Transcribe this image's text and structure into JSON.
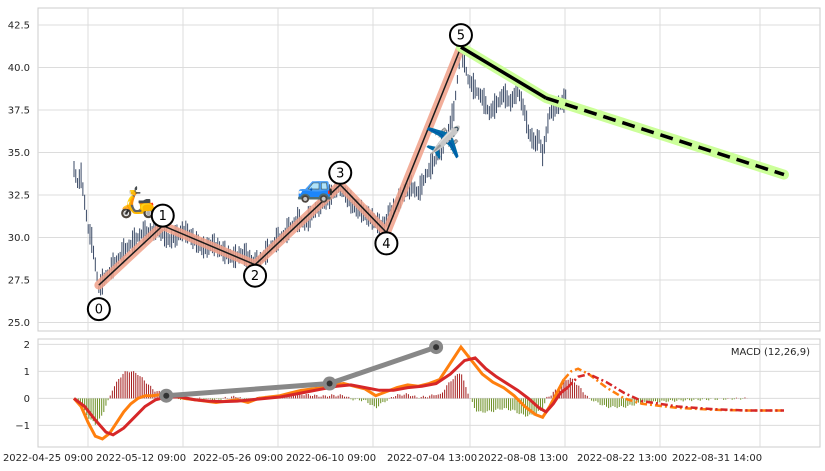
{
  "chart_data": [
    {
      "type": "candlestick",
      "panel": "price",
      "ylim": [
        24.5,
        43.5
      ],
      "yticks": [
        "25.0",
        "27.5",
        "30.0",
        "32.5",
        "35.0",
        "37.5",
        "40.0",
        "42.5"
      ],
      "grid": true,
      "colors": {
        "candles": "#3a4a66",
        "wave_band": "#f0a088",
        "wave_line": "#1a1a1a",
        "projection_band": "#ccff99",
        "projection_line": "#000000"
      },
      "wave_points": [
        {
          "label": "0",
          "x": 7,
          "y": 27.2
        },
        {
          "label": "1",
          "x": 25,
          "y": 30.7
        },
        {
          "label": "2",
          "x": 51,
          "y": 28.4
        },
        {
          "label": "3",
          "x": 75,
          "y": 33.1
        },
        {
          "label": "4",
          "x": 88,
          "y": 30.3
        },
        {
          "label": "5",
          "x": 109,
          "y": 41.2
        }
      ],
      "projection": [
        {
          "x": 109,
          "y": 41.2
        },
        {
          "x": 133,
          "y": 38.2
        },
        {
          "x": 200,
          "y": 33.7
        }
      ],
      "icons": [
        {
          "name": "scooter",
          "glyph": "🛵",
          "x": 18,
          "y": 31.5
        },
        {
          "name": "car",
          "glyph": "🚙",
          "x": 68,
          "y": 32.4
        },
        {
          "name": "airplane",
          "glyph": "✈️",
          "x": 104,
          "y": 35.0
        }
      ],
      "price_segments": [
        [
          0,
          34.0
        ],
        [
          1,
          33.2
        ],
        [
          2,
          33.6
        ],
        [
          4,
          30.5
        ],
        [
          5,
          29.8
        ],
        [
          7,
          27.0
        ],
        [
          9,
          27.7
        ],
        [
          11,
          28.3
        ],
        [
          13,
          28.9
        ],
        [
          15,
          29.4
        ],
        [
          17,
          29.8
        ],
        [
          19,
          30.2
        ],
        [
          21,
          30.3
        ],
        [
          23,
          30.5
        ],
        [
          25,
          30.2
        ],
        [
          27,
          29.8
        ],
        [
          29,
          30.1
        ],
        [
          31,
          30.4
        ],
        [
          33,
          30.0
        ],
        [
          35,
          29.6
        ],
        [
          37,
          29.3
        ],
        [
          39,
          29.6
        ],
        [
          41,
          29.3
        ],
        [
          43,
          29.0
        ],
        [
          45,
          28.8
        ],
        [
          47,
          29.0
        ],
        [
          49,
          28.9
        ],
        [
          51,
          28.4
        ],
        [
          53,
          28.8
        ],
        [
          55,
          29.3
        ],
        [
          57,
          29.8
        ],
        [
          59,
          30.1
        ],
        [
          61,
          30.6
        ],
        [
          63,
          31.0
        ],
        [
          65,
          30.8
        ],
        [
          67,
          31.3
        ],
        [
          69,
          31.9
        ],
        [
          71,
          32.1
        ],
        [
          73,
          32.6
        ],
        [
          75,
          33.1
        ],
        [
          77,
          32.3
        ],
        [
          79,
          31.8
        ],
        [
          81,
          31.5
        ],
        [
          83,
          31.2
        ],
        [
          85,
          30.9
        ],
        [
          87,
          30.6
        ],
        [
          89,
          31.4
        ],
        [
          91,
          32.0
        ],
        [
          93,
          32.6
        ],
        [
          95,
          33.0
        ],
        [
          97,
          32.6
        ],
        [
          99,
          33.6
        ],
        [
          101,
          34.3
        ],
        [
          103,
          35.0
        ],
        [
          105,
          36.0
        ],
        [
          107,
          37.4
        ],
        [
          109,
          41.2
        ],
        [
          111,
          39.3
        ],
        [
          113,
          38.7
        ],
        [
          115,
          38.2
        ],
        [
          117,
          37.3
        ],
        [
          119,
          37.8
        ],
        [
          121,
          38.4
        ],
        [
          123,
          37.9
        ],
        [
          125,
          38.7
        ],
        [
          127,
          37.3
        ],
        [
          128,
          36.2
        ],
        [
          129,
          35.8
        ],
        [
          130,
          35.5
        ],
        [
          131,
          35.9
        ],
        [
          132,
          34.8
        ],
        [
          134,
          37.3
        ],
        [
          136,
          37.7
        ],
        [
          138,
          38.0
        ],
        [
          139,
          38.3
        ]
      ]
    },
    {
      "type": "bar+line",
      "panel": "macd",
      "ylim": [
        -1.8,
        2.2
      ],
      "yticks": [
        "−1",
        "0",
        "1",
        "2"
      ],
      "grid": true,
      "legend": "MACD (12,26,9)",
      "x_tick_labels": [
        "2022-04-25 09:00",
        "2022-05-12 09:00",
        "2022-05-26 09:00",
        "2022-06-10 09:00",
        "2022-07-04 13:00",
        "2022-08-08 13:00",
        "2022-08-22 13:00",
        "2022-08-31 14:00"
      ],
      "colors": {
        "macd": "#ff7f0e",
        "signal": "#d62728",
        "hist_pos": "#a51f1f",
        "hist_neg": "#6b8e23",
        "divergence": "#888888"
      },
      "macd_line": [
        [
          0,
          0.0
        ],
        [
          2,
          -0.3
        ],
        [
          4,
          -0.9
        ],
        [
          6,
          -1.4
        ],
        [
          8,
          -1.5
        ],
        [
          10,
          -1.3
        ],
        [
          12,
          -0.9
        ],
        [
          14,
          -0.5
        ],
        [
          16,
          -0.2
        ],
        [
          18,
          0.0
        ],
        [
          20,
          0.1
        ],
        [
          22,
          0.1
        ],
        [
          25,
          0.15
        ],
        [
          28,
          0.1
        ],
        [
          31,
          0.0
        ],
        [
          34,
          -0.05
        ],
        [
          37,
          -0.1
        ],
        [
          40,
          -0.15
        ],
        [
          43,
          -0.1
        ],
        [
          46,
          -0.05
        ],
        [
          49,
          -0.15
        ],
        [
          52,
          0.0
        ],
        [
          55,
          0.05
        ],
        [
          58,
          0.1
        ],
        [
          61,
          0.2
        ],
        [
          64,
          0.3
        ],
        [
          67,
          0.35
        ],
        [
          70,
          0.4
        ],
        [
          73,
          0.5
        ],
        [
          76,
          0.55
        ],
        [
          79,
          0.45
        ],
        [
          82,
          0.35
        ],
        [
          85,
          0.1
        ],
        [
          88,
          0.25
        ],
        [
          91,
          0.4
        ],
        [
          94,
          0.5
        ],
        [
          97,
          0.45
        ],
        [
          100,
          0.55
        ],
        [
          103,
          0.7
        ],
        [
          106,
          1.3
        ],
        [
          109,
          1.9
        ],
        [
          112,
          1.4
        ],
        [
          115,
          0.9
        ],
        [
          118,
          0.6
        ],
        [
          121,
          0.4
        ],
        [
          124,
          0.1
        ],
        [
          127,
          -0.3
        ],
        [
          130,
          -0.6
        ],
        [
          132,
          -0.7
        ],
        [
          134,
          -0.3
        ],
        [
          136,
          0.2
        ],
        [
          138,
          0.7
        ]
      ],
      "macd_projection": [
        [
          138,
          0.7
        ],
        [
          140,
          1.0
        ],
        [
          142,
          1.1
        ],
        [
          145,
          0.9
        ],
        [
          150,
          0.4
        ],
        [
          155,
          0.0
        ],
        [
          160,
          -0.2
        ],
        [
          170,
          -0.35
        ],
        [
          180,
          -0.42
        ],
        [
          190,
          -0.45
        ],
        [
          200,
          -0.45
        ]
      ],
      "signal_line": [
        [
          0,
          0.0
        ],
        [
          3,
          -0.3
        ],
        [
          6,
          -0.8
        ],
        [
          9,
          -1.25
        ],
        [
          11,
          -1.35
        ],
        [
          14,
          -1.1
        ],
        [
          17,
          -0.7
        ],
        [
          20,
          -0.3
        ],
        [
          23,
          -0.05
        ],
        [
          26,
          0.05
        ],
        [
          30,
          0.05
        ],
        [
          34,
          -0.05
        ],
        [
          38,
          -0.1
        ],
        [
          42,
          -0.12
        ],
        [
          46,
          -0.1
        ],
        [
          50,
          -0.05
        ],
        [
          54,
          0.0
        ],
        [
          58,
          0.05
        ],
        [
          62,
          0.15
        ],
        [
          66,
          0.25
        ],
        [
          70,
          0.35
        ],
        [
          74,
          0.45
        ],
        [
          78,
          0.5
        ],
        [
          82,
          0.4
        ],
        [
          86,
          0.3
        ],
        [
          90,
          0.3
        ],
        [
          94,
          0.4
        ],
        [
          98,
          0.45
        ],
        [
          102,
          0.55
        ],
        [
          106,
          0.9
        ],
        [
          110,
          1.4
        ],
        [
          113,
          1.5
        ],
        [
          116,
          1.1
        ],
        [
          119,
          0.8
        ],
        [
          122,
          0.55
        ],
        [
          125,
          0.3
        ],
        [
          128,
          0.0
        ],
        [
          131,
          -0.35
        ],
        [
          133,
          -0.5
        ],
        [
          135,
          -0.2
        ],
        [
          137,
          0.2
        ],
        [
          139,
          0.4
        ]
      ],
      "signal_projection": [
        [
          139,
          0.4
        ],
        [
          142,
          0.8
        ],
        [
          145,
          0.9
        ],
        [
          150,
          0.6
        ],
        [
          155,
          0.2
        ],
        [
          160,
          -0.1
        ],
        [
          170,
          -0.3
        ],
        [
          180,
          -0.4
        ],
        [
          190,
          -0.45
        ],
        [
          200,
          -0.45
        ]
      ],
      "divergence_points": [
        {
          "x": 26,
          "y": 0.1
        },
        {
          "x": 72,
          "y": 0.55
        },
        {
          "x": 102,
          "y": 1.9
        }
      ]
    }
  ]
}
